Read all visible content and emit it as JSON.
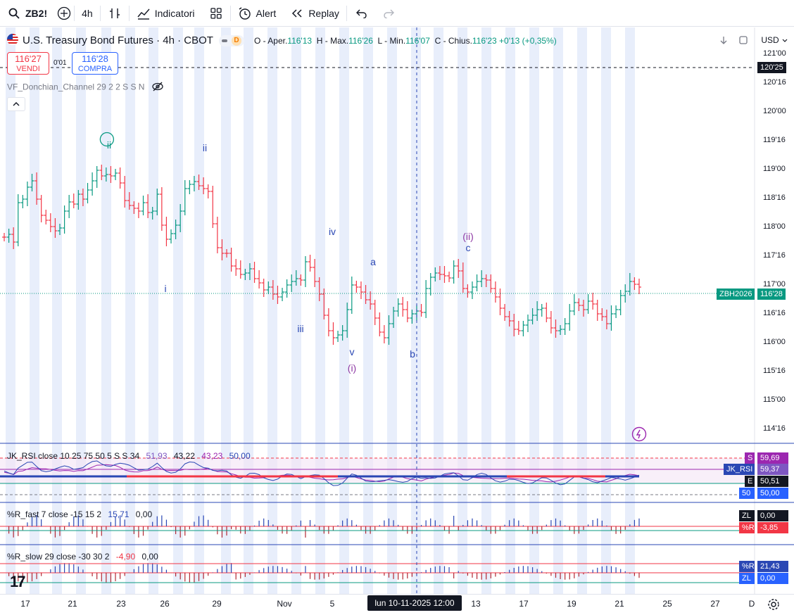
{
  "toolbar": {
    "symbol": "ZB2!",
    "interval": "4h",
    "indicators_label": "Indicatori",
    "alert_label": "Alert",
    "replay_label": "Replay"
  },
  "legend": {
    "title": "U.S. Treasury Bond Futures · 4h · CBOT",
    "badge": "D",
    "open_label": "O - Aper.",
    "open": "116'13",
    "high_label": "H - Max.",
    "high": "116'26",
    "low_label": "L - Min.",
    "low": "116'07",
    "close_label": "C - Chius.",
    "close": "116'23",
    "change": "+0'13 (+0,35%)"
  },
  "trade": {
    "sell_price": "116'27",
    "sell_label": "VENDI",
    "spread": "0'01",
    "buy_price": "116'28",
    "buy_label": "COMPRA"
  },
  "indicators": {
    "donchian": "VF_Donchian_Channel 29 2 2 S S N",
    "rsi_label": "JK_RSI close 10 25 75 50 5 S S 34",
    "rsi_v1": "51,93",
    "rsi_v2": "43,22",
    "rsi_v3": "43,23",
    "rsi_v4": "50,00",
    "rfast_label": "%R_fast 7 close -15 15 2",
    "rfast_v1": "15,71",
    "rfast_v2": "0,00",
    "rslow_label": "%R_slow 29 close -30 30 2",
    "rslow_v1": "-4,90",
    "rslow_v2": "0,00"
  },
  "price_axis": {
    "currency": "USD",
    "ticks": [
      "121'00",
      "120'16",
      "120'00",
      "119'16",
      "119'00",
      "118'16",
      "118'00",
      "117'16",
      "117'00",
      "116'16",
      "116'00",
      "115'16",
      "115'00",
      "114'16"
    ],
    "crosshair_price": "120'25",
    "symbol_tag": "ZBH2026",
    "last_price": "116'28"
  },
  "rsi_axis": {
    "s_tag": "S",
    "s_val": "59,69",
    "jk_tag": "JK_RSI",
    "jk_val": "59,37",
    "e_tag": "E",
    "e_val": "50,51",
    "m_tag": "50",
    "m_val": "50,00"
  },
  "rfast_axis": {
    "zl_tag": "ZL",
    "zl_val": "0,00",
    "r_tag": "%R",
    "r_val": "-3,85"
  },
  "rslow_axis": {
    "r_tag": "%R",
    "r_val": "21,43",
    "zl_tag": "ZL",
    "zl_val": "0,00"
  },
  "waves": {
    "ii_circ": "ii",
    "ii": "ii",
    "i": "i",
    "iii": "iii",
    "iv": "iv",
    "v": "v",
    "i_paren": "(i)",
    "a": "a",
    "b": "b",
    "c": "c",
    "ii_paren": "(ii)"
  },
  "time_axis": {
    "labels": [
      "17",
      "21",
      "23",
      "26",
      "29",
      "Nov",
      "5",
      "13",
      "17",
      "19",
      "21",
      "25",
      "27",
      "D"
    ],
    "crosshair_date": "lun 10-11-2025   12:00"
  },
  "colors": {
    "up": "#089981",
    "down": "#f23645",
    "band": "#e8eefb",
    "rsi_line": "#7e57c2",
    "rsi_blue": "#2a47b4",
    "accent": "#2962ff"
  },
  "chart_data": {
    "type": "candlestick",
    "price_range": [
      "114'16",
      "121'00"
    ],
    "last": "116'28"
  }
}
